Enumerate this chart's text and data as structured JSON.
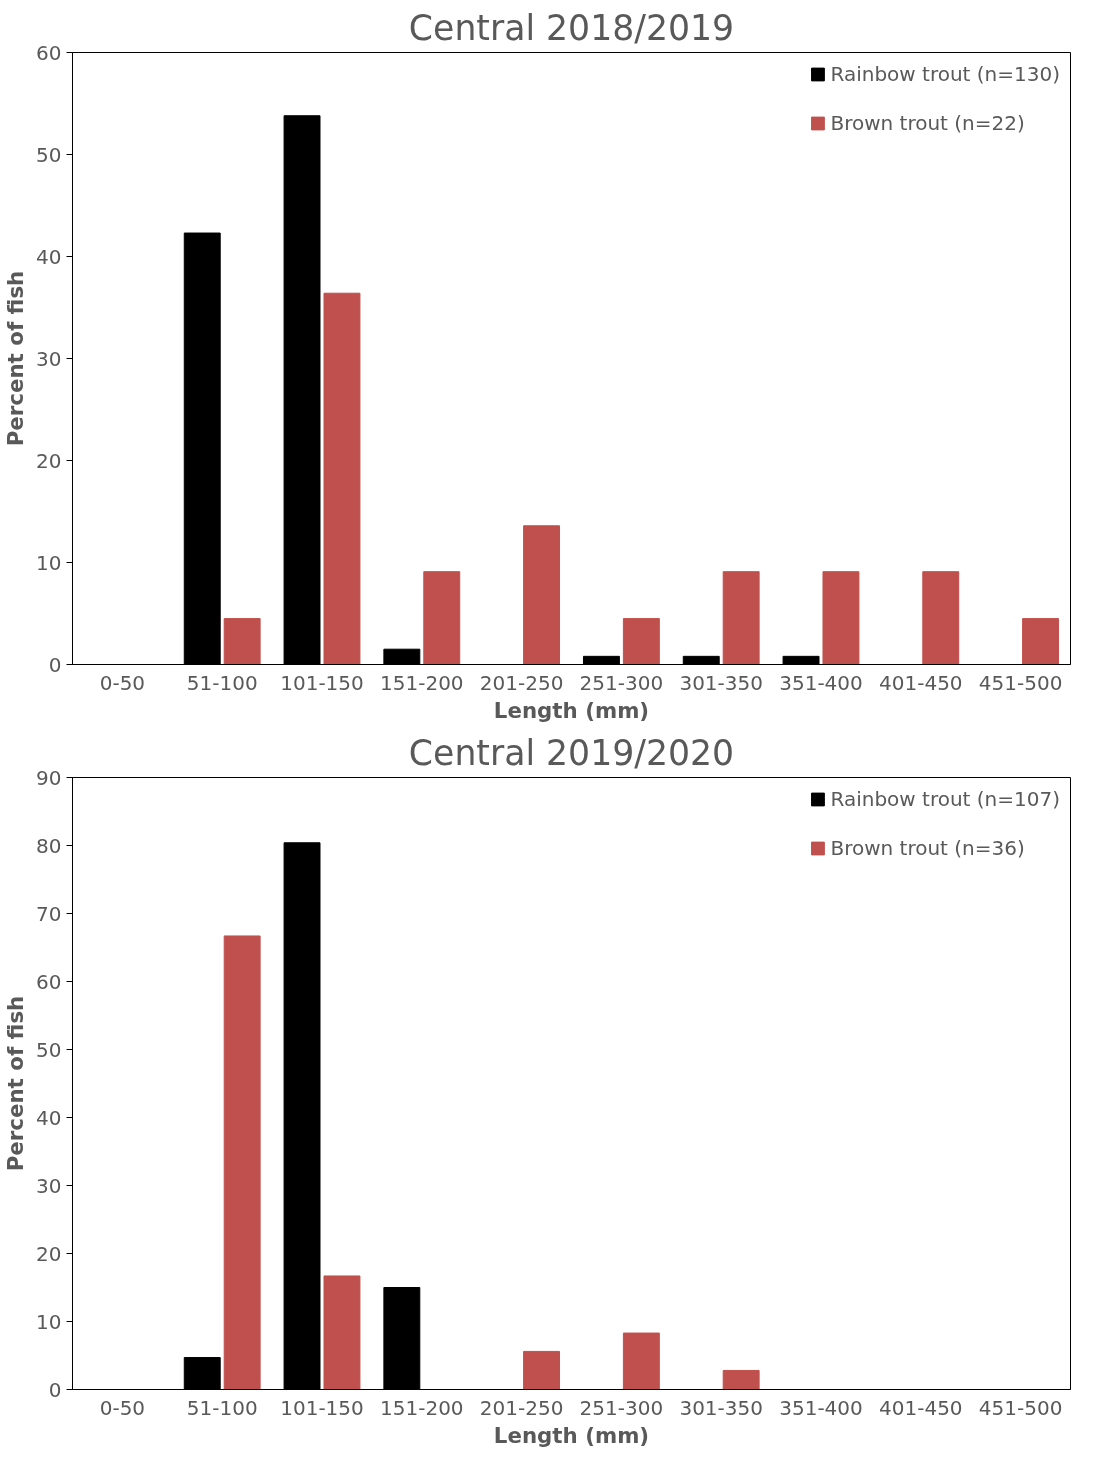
{
  "chart_data": [
    {
      "type": "bar",
      "title": "Central 2018/2019",
      "xlabel": "Length (mm)",
      "ylabel": "Percent of fish",
      "categories": [
        "0-50",
        "51-100",
        "101-150",
        "151-200",
        "201-250",
        "251-300",
        "301-350",
        "351-400",
        "401-450",
        "451-500"
      ],
      "series": [
        {
          "name": "Rainbow trout (n=130)",
          "color": "#000000",
          "values": [
            0,
            42.3,
            53.8,
            1.5,
            0,
            0.8,
            0.8,
            0.8,
            0,
            0
          ]
        },
        {
          "name": "Brown trout (n=22)",
          "color": "#c0504d",
          "values": [
            0,
            4.5,
            36.4,
            9.1,
            13.6,
            4.5,
            9.1,
            9.1,
            9.1,
            4.5
          ]
        }
      ],
      "ylim": [
        0,
        60
      ],
      "yticks": [
        0,
        10,
        20,
        30,
        40,
        50,
        60
      ],
      "grid": false,
      "legend": "top right"
    },
    {
      "type": "bar",
      "title": "Central 2019/2020",
      "xlabel": "Length (mm)",
      "ylabel": "Percent of fish",
      "categories": [
        "0-50",
        "51-100",
        "101-150",
        "151-200",
        "201-250",
        "251-300",
        "301-350",
        "351-400",
        "401-450",
        "451-500"
      ],
      "series": [
        {
          "name": "Rainbow trout (n=107)",
          "color": "#000000",
          "values": [
            0,
            4.7,
            80.4,
            15.0,
            0,
            0,
            0,
            0,
            0,
            0
          ]
        },
        {
          "name": "Brown trout (n=36)",
          "color": "#c0504d",
          "values": [
            0,
            66.7,
            16.7,
            0,
            5.6,
            8.3,
            2.8,
            0,
            0,
            0
          ]
        }
      ],
      "ylim": [
        0,
        90
      ],
      "yticks": [
        0,
        10,
        20,
        30,
        40,
        50,
        60,
        70,
        80,
        90
      ],
      "grid": false,
      "legend": "top right"
    }
  ]
}
